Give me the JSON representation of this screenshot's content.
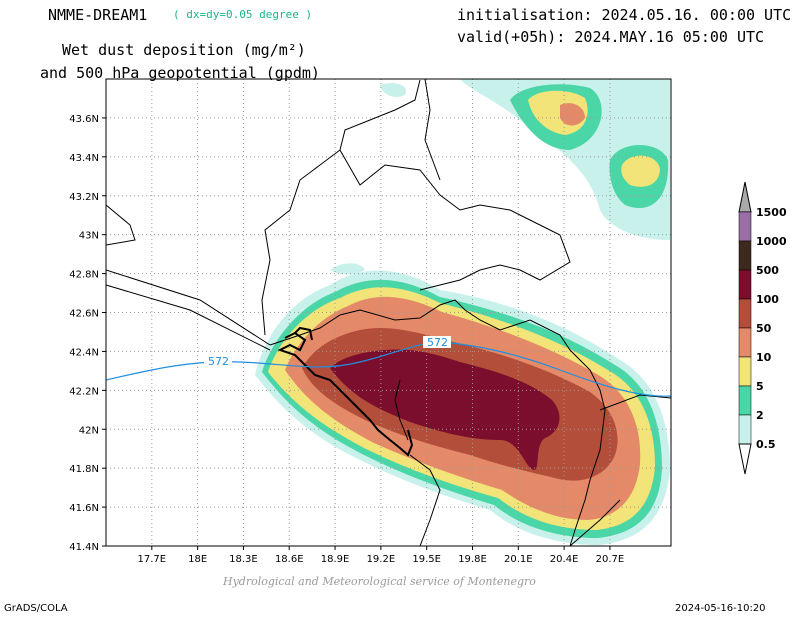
{
  "header": {
    "model": "NMME-DREAM1",
    "resolution": "( dx=dy=0.05 degree )",
    "variable_line1": "Wet dust deposition (mg/m²)",
    "variable_line2": "and 500 hPa geopotential (gpdm)",
    "initialisation": "initialisation: 2024.05.16. 00:00 UTC",
    "valid": "valid(+05h): 2024.MAY.16 05:00 UTC"
  },
  "map": {
    "lat_range": [
      41.4,
      43.8
    ],
    "lon_range": [
      17.4,
      21.1
    ],
    "lat_ticks": [
      "41.4N",
      "41.6N",
      "41.8N",
      "42N",
      "42.2N",
      "42.4N",
      "42.6N",
      "42.8N",
      "43N",
      "43.2N",
      "43.4N",
      "43.6N"
    ],
    "lon_ticks": [
      "17.7E",
      "18E",
      "18.3E",
      "18.6E",
      "18.9E",
      "19.2E",
      "19.5E",
      "19.8E",
      "20.1E",
      "20.4E",
      "20.7E"
    ],
    "contour_label_left": "572",
    "contour_label_right": "572",
    "contour_color": "#1f8fe0"
  },
  "legend": {
    "levels": [
      "1500",
      "1000",
      "500",
      "100",
      "50",
      "10",
      "5",
      "2",
      "0.5"
    ],
    "colors": [
      "#9a6fa8",
      "#3c2a1e",
      "#7a0e2c",
      "#b34e3b",
      "#e48a68",
      "#f2e478",
      "#4ad6a6",
      "#c9f1ec"
    ]
  },
  "footer": {
    "credit": "Hydrological and Meteorological service of Montenegro",
    "software": "GrADS/COLA",
    "timestamp": "2024-05-16-10:20"
  }
}
